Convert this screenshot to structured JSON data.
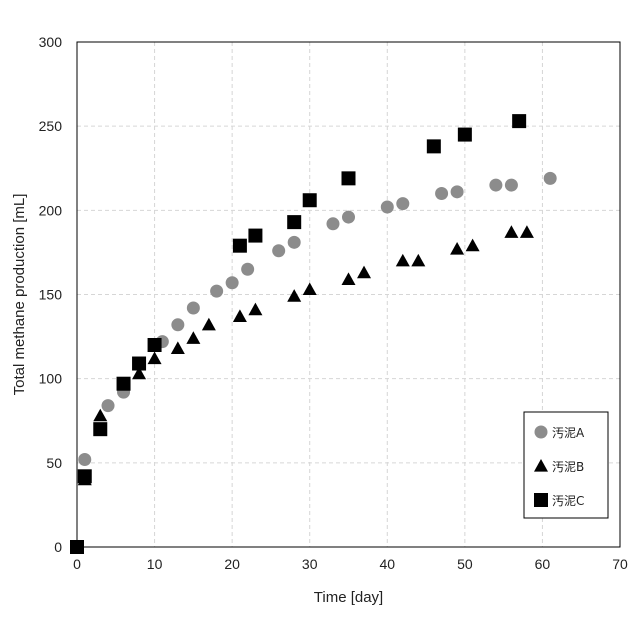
{
  "chart_data": {
    "type": "scatter",
    "title": "",
    "xlabel": "Time [day]",
    "ylabel": "Total methane production [mL]",
    "xlim": [
      0,
      70
    ],
    "ylim": [
      0,
      300
    ],
    "x_ticks": [
      0,
      10,
      20,
      30,
      40,
      50,
      60,
      70
    ],
    "y_ticks": [
      0,
      50,
      100,
      150,
      200,
      250,
      300
    ],
    "grid": true,
    "legend_position": "bottom-right",
    "series": [
      {
        "name": "汚泥A",
        "marker": "circle",
        "color": "#8c8c8c",
        "points": [
          [
            1,
            52
          ],
          [
            4,
            84
          ],
          [
            6,
            92
          ],
          [
            11,
            122
          ],
          [
            13,
            132
          ],
          [
            15,
            142
          ],
          [
            18,
            152
          ],
          [
            20,
            157
          ],
          [
            22,
            165
          ],
          [
            26,
            176
          ],
          [
            28,
            181
          ],
          [
            33,
            192
          ],
          [
            35,
            196
          ],
          [
            40,
            202
          ],
          [
            42,
            204
          ],
          [
            47,
            210
          ],
          [
            49,
            211
          ],
          [
            54,
            215
          ],
          [
            56,
            215
          ],
          [
            61,
            219
          ]
        ]
      },
      {
        "name": "汚泥B",
        "marker": "triangle",
        "color": "#000000",
        "points": [
          [
            1,
            40
          ],
          [
            3,
            78
          ],
          [
            8,
            103
          ],
          [
            10,
            112
          ],
          [
            13,
            118
          ],
          [
            15,
            124
          ],
          [
            17,
            132
          ],
          [
            21,
            137
          ],
          [
            23,
            141
          ],
          [
            28,
            149
          ],
          [
            30,
            153
          ],
          [
            35,
            159
          ],
          [
            37,
            163
          ],
          [
            42,
            170
          ],
          [
            44,
            170
          ],
          [
            49,
            177
          ],
          [
            51,
            179
          ],
          [
            56,
            187
          ],
          [
            58,
            187
          ]
        ]
      },
      {
        "name": "汚泥C",
        "marker": "square",
        "color": "#000000",
        "points": [
          [
            0,
            0
          ],
          [
            1,
            42
          ],
          [
            3,
            70
          ],
          [
            6,
            97
          ],
          [
            8,
            109
          ],
          [
            10,
            120
          ],
          [
            21,
            179
          ],
          [
            23,
            185
          ],
          [
            28,
            193
          ],
          [
            30,
            206
          ],
          [
            35,
            219
          ],
          [
            46,
            238
          ],
          [
            50,
            245
          ],
          [
            57,
            253
          ]
        ]
      }
    ]
  }
}
